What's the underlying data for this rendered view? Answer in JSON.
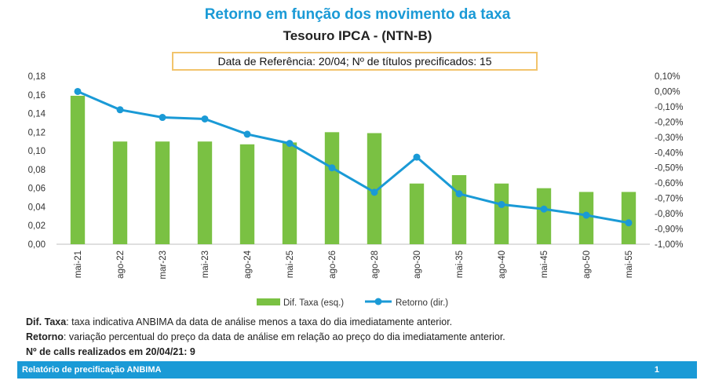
{
  "header": {
    "title": "Retorno em função dos movimento da taxa",
    "subtitle": "Tesouro IPCA - (NTN-B)",
    "reference": "Data de Referência: 20/04; Nº de títulos precificados: 15"
  },
  "chart_data": {
    "type": "bar",
    "categories": [
      "mai-21",
      "ago-22",
      "mar-23",
      "mai-23",
      "ago-24",
      "mai-25",
      "ago-26",
      "ago-28",
      "ago-30",
      "mai-35",
      "ago-40",
      "mai-45",
      "ago-50",
      "mai-55"
    ],
    "series": [
      {
        "name": "Dif. Taxa (esq.)",
        "axis": "left",
        "type": "bar",
        "color": "#7ac143",
        "values": [
          0.159,
          0.11,
          0.11,
          0.11,
          0.107,
          0.109,
          0.12,
          0.119,
          0.065,
          0.074,
          0.065,
          0.06,
          0.056,
          0.056
        ]
      },
      {
        "name": "Retorno (dir.)",
        "axis": "right",
        "type": "line",
        "color": "#1a9ad6",
        "values": [
          0.0,
          -0.12,
          -0.17,
          -0.18,
          -0.28,
          -0.34,
          -0.5,
          -0.66,
          -0.43,
          -0.67,
          -0.74,
          -0.77,
          -0.81,
          -0.86
        ]
      }
    ],
    "y_left": {
      "min": 0.0,
      "max": 0.18,
      "ticks": [
        "0,00",
        "0,02",
        "0,04",
        "0,06",
        "0,08",
        "0,10",
        "0,12",
        "0,14",
        "0,16",
        "0,18"
      ]
    },
    "y_right": {
      "min": -1.0,
      "max": 0.1,
      "ticks": [
        "-1,00%",
        "-0,90%",
        "-0,80%",
        "-0,70%",
        "-0,60%",
        "-0,50%",
        "-0,40%",
        "-0,30%",
        "-0,20%",
        "-0,10%",
        "0,00%",
        "0,10%"
      ]
    },
    "grid": false,
    "legend": "bottom"
  },
  "notes": {
    "dif_label": "Dif. Taxa",
    "dif_text": ": taxa indicativa ANBIMA da data de análise menos a taxa do dia imediatamente anterior.",
    "ret_label": "Retorno",
    "ret_text": ": variação percentual do preço da data de análise em relação ao preço do dia imediatamente anterior.",
    "calls": "Nº de calls realizados em 20/04/21:   9"
  },
  "footer": {
    "left": "Relatório de precificação ANBIMA",
    "page": "1"
  }
}
